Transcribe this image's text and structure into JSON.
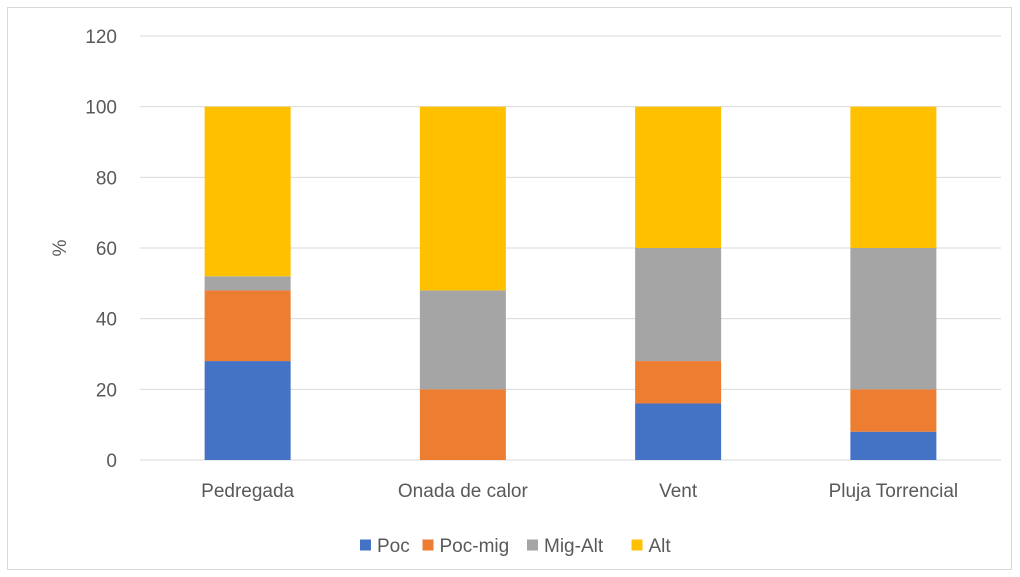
{
  "chart_data": {
    "type": "bar",
    "stacked": true,
    "categories": [
      "Pedregada",
      "Onada de calor",
      "Vent",
      "Pluja Torrencial"
    ],
    "series": [
      {
        "name": "Poc",
        "color": "#4472c4",
        "values": [
          28,
          0,
          16,
          8
        ]
      },
      {
        "name": "Poc-mig",
        "color": "#ed7d31",
        "values": [
          20,
          20,
          12,
          12
        ]
      },
      {
        "name": "Mig-Alt",
        "color": "#a5a5a5",
        "values": [
          4,
          28,
          32,
          40
        ]
      },
      {
        "name": "Alt",
        "color": "#ffc000",
        "values": [
          48,
          52,
          40,
          40
        ]
      }
    ],
    "ylabel": "%",
    "xlabel": "",
    "ylim": [
      0,
      120
    ],
    "yticks": [
      0,
      20,
      40,
      60,
      80,
      100,
      120
    ],
    "grid": true,
    "legend_position": "bottom"
  }
}
